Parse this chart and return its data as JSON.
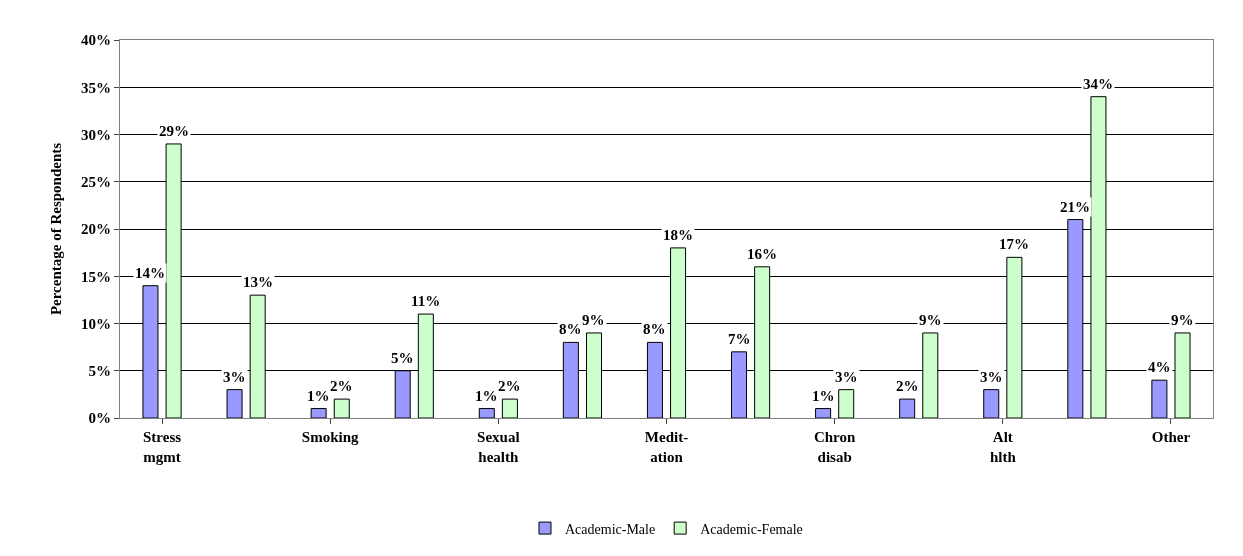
{
  "chart_data": {
    "type": "bar",
    "ylabel": "Percentage of Respondents",
    "categories": [
      "Stress\nmgmt",
      null,
      "Smoking",
      null,
      "Sexual\nhealth",
      null,
      "Medit-\nation",
      null,
      "Chron\ndisab",
      null,
      "Alt\nhlth",
      null,
      "Other"
    ],
    "series": [
      {
        "name": "Academic-Male",
        "color": "#9999ff",
        "values": [
          14,
          3,
          1,
          5,
          1,
          8,
          8,
          7,
          1,
          2,
          3,
          21,
          4
        ],
        "value_labels": [
          "14%",
          "3%",
          "1%",
          "5%",
          "1%",
          "8%",
          "8%",
          "7%",
          "1%",
          "2%",
          "3%",
          "21%",
          "4%"
        ]
      },
      {
        "name": "Academic-Female",
        "color": "#ccffcc",
        "values": [
          29,
          13,
          2,
          11,
          2,
          9,
          18,
          16,
          3,
          9,
          17,
          34,
          9
        ],
        "value_labels": [
          "29%",
          "13%",
          "2%",
          "11%",
          "2%",
          "9%",
          "18%",
          "16%",
          "3%",
          "9%",
          "17%",
          "34%",
          "9%"
        ]
      }
    ],
    "ylim": [
      0,
      40
    ],
    "yticks": [
      {
        "value": 0,
        "label": "0%"
      },
      {
        "value": 5,
        "label": "5%"
      },
      {
        "value": 10,
        "label": "10%"
      },
      {
        "value": 15,
        "label": "15%"
      },
      {
        "value": 20,
        "label": "20%"
      },
      {
        "value": 25,
        "label": "25%"
      },
      {
        "value": 30,
        "label": "30%"
      },
      {
        "value": 35,
        "label": "35%"
      },
      {
        "value": 40,
        "label": "40%"
      }
    ],
    "grid": "y",
    "legend": "bottom"
  }
}
